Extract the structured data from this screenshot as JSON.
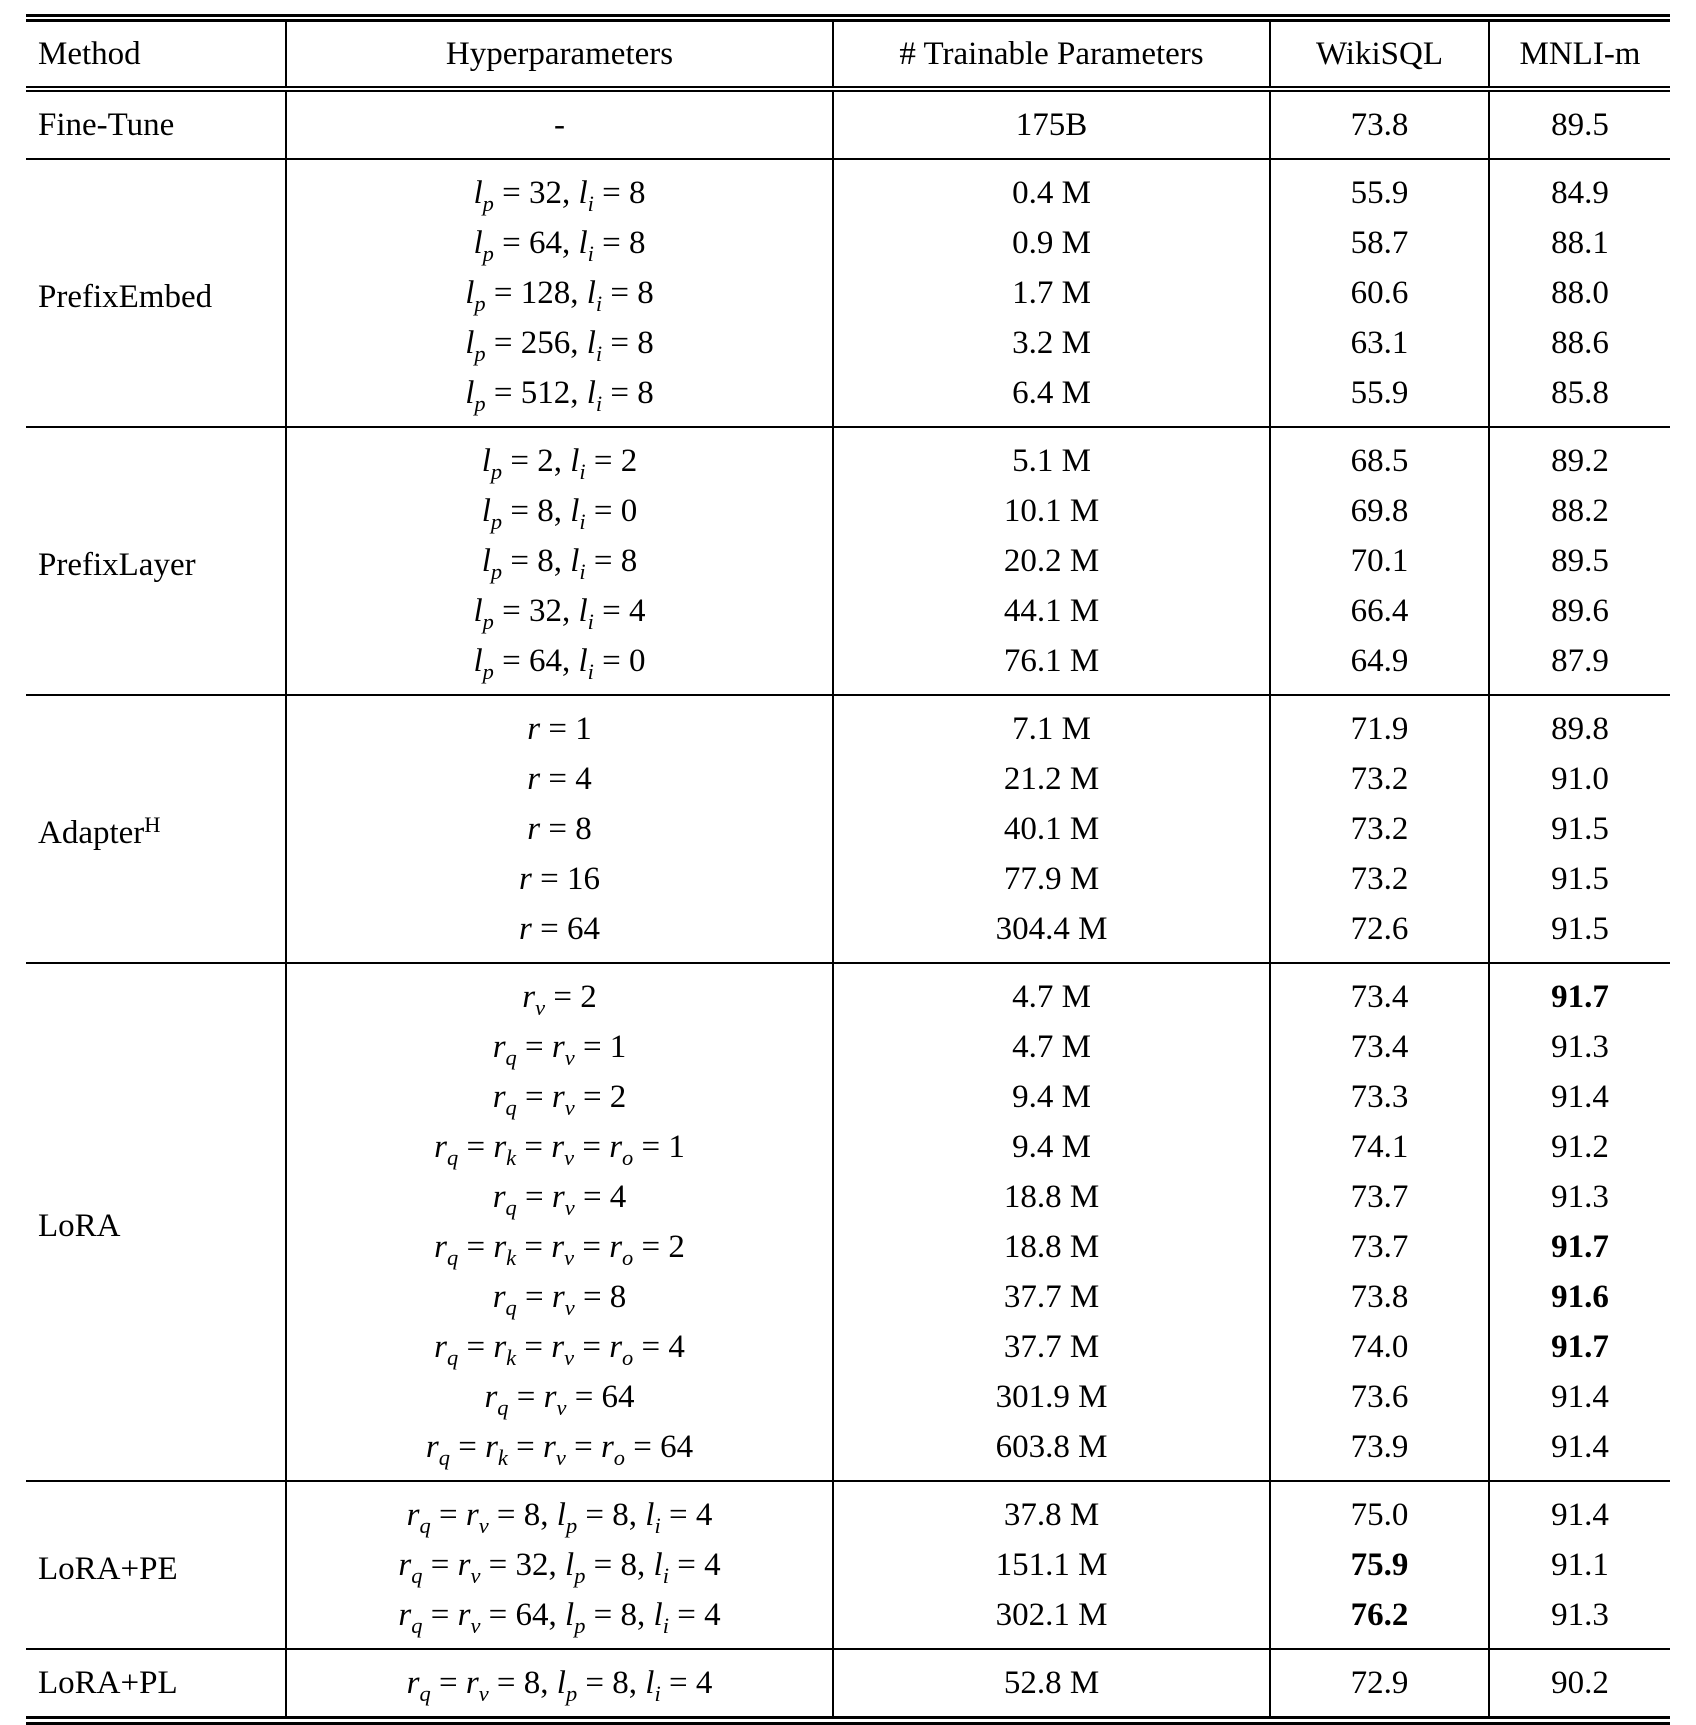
{
  "table": {
    "columns": [
      "Method",
      "Hyperparameters",
      "# Trainable Parameters",
      "WikiSQL",
      "MNLI-m"
    ],
    "groups": [
      {
        "method": "Fine-Tune",
        "rows": [
          {
            "hyperparameters": "-",
            "trainable": "175B",
            "wikisql": "73.8",
            "mnli": "89.5"
          }
        ]
      },
      {
        "method": "PrefixEmbed",
        "rows": [
          {
            "hyperparameters": "l_p = 32, l_i = 8",
            "trainable": "0.4 M",
            "wikisql": "55.9",
            "mnli": "84.9"
          },
          {
            "hyperparameters": "l_p = 64, l_i = 8",
            "trainable": "0.9 M",
            "wikisql": "58.7",
            "mnli": "88.1"
          },
          {
            "hyperparameters": "l_p = 128, l_i = 8",
            "trainable": "1.7 M",
            "wikisql": "60.6",
            "mnli": "88.0"
          },
          {
            "hyperparameters": "l_p = 256, l_i = 8",
            "trainable": "3.2 M",
            "wikisql": "63.1",
            "mnli": "88.6"
          },
          {
            "hyperparameters": "l_p = 512, l_i = 8",
            "trainable": "6.4 M",
            "wikisql": "55.9",
            "mnli": "85.8"
          }
        ]
      },
      {
        "method": "PrefixLayer",
        "rows": [
          {
            "hyperparameters": "l_p = 2, l_i = 2",
            "trainable": "5.1 M",
            "wikisql": "68.5",
            "mnli": "89.2"
          },
          {
            "hyperparameters": "l_p = 8, l_i = 0",
            "trainable": "10.1 M",
            "wikisql": "69.8",
            "mnli": "88.2"
          },
          {
            "hyperparameters": "l_p = 8, l_i = 8",
            "trainable": "20.2 M",
            "wikisql": "70.1",
            "mnli": "89.5"
          },
          {
            "hyperparameters": "l_p = 32, l_i = 4",
            "trainable": "44.1 M",
            "wikisql": "66.4",
            "mnli": "89.6"
          },
          {
            "hyperparameters": "l_p = 64, l_i = 0",
            "trainable": "76.1 M",
            "wikisql": "64.9",
            "mnli": "87.9"
          }
        ]
      },
      {
        "method": "Adapter^H",
        "rows": [
          {
            "hyperparameters": "r = 1",
            "trainable": "7.1 M",
            "wikisql": "71.9",
            "mnli": "89.8"
          },
          {
            "hyperparameters": "r = 4",
            "trainable": "21.2 M",
            "wikisql": "73.2",
            "mnli": "91.0"
          },
          {
            "hyperparameters": "r = 8",
            "trainable": "40.1 M",
            "wikisql": "73.2",
            "mnli": "91.5"
          },
          {
            "hyperparameters": "r = 16",
            "trainable": "77.9 M",
            "wikisql": "73.2",
            "mnli": "91.5"
          },
          {
            "hyperparameters": "r = 64",
            "trainable": "304.4 M",
            "wikisql": "72.6",
            "mnli": "91.5"
          }
        ]
      },
      {
        "method": "LoRA",
        "rows": [
          {
            "hyperparameters": "r_v = 2",
            "trainable": "4.7 M",
            "wikisql": "73.4",
            "mnli": "91.7",
            "bold": [
              "mnli"
            ]
          },
          {
            "hyperparameters": "r_q = r_v = 1",
            "trainable": "4.7 M",
            "wikisql": "73.4",
            "mnli": "91.3"
          },
          {
            "hyperparameters": "r_q = r_v = 2",
            "trainable": "9.4 M",
            "wikisql": "73.3",
            "mnli": "91.4"
          },
          {
            "hyperparameters": "r_q = r_k = r_v = r_o = 1",
            "trainable": "9.4 M",
            "wikisql": "74.1",
            "mnli": "91.2"
          },
          {
            "hyperparameters": "r_q = r_v = 4",
            "trainable": "18.8 M",
            "wikisql": "73.7",
            "mnli": "91.3"
          },
          {
            "hyperparameters": "r_q = r_k = r_v = r_o = 2",
            "trainable": "18.8 M",
            "wikisql": "73.7",
            "mnli": "91.7",
            "bold": [
              "mnli"
            ]
          },
          {
            "hyperparameters": "r_q = r_v = 8",
            "trainable": "37.7 M",
            "wikisql": "73.8",
            "mnli": "91.6",
            "bold": [
              "mnli"
            ]
          },
          {
            "hyperparameters": "r_q = r_k = r_v = r_o = 4",
            "trainable": "37.7 M",
            "wikisql": "74.0",
            "mnli": "91.7",
            "bold": [
              "mnli"
            ]
          },
          {
            "hyperparameters": "r_q = r_v = 64",
            "trainable": "301.9 M",
            "wikisql": "73.6",
            "mnli": "91.4"
          },
          {
            "hyperparameters": "r_q = r_k = r_v = r_o = 64",
            "trainable": "603.8 M",
            "wikisql": "73.9",
            "mnli": "91.4"
          }
        ]
      },
      {
        "method": "LoRA+PE",
        "rows": [
          {
            "hyperparameters": "r_q = r_v = 8, l_p = 8, l_i = 4",
            "trainable": "37.8 M",
            "wikisql": "75.0",
            "mnli": "91.4"
          },
          {
            "hyperparameters": "r_q = r_v = 32, l_p = 8, l_i = 4",
            "trainable": "151.1 M",
            "wikisql": "75.9",
            "mnli": "91.1",
            "bold": [
              "wikisql"
            ]
          },
          {
            "hyperparameters": "r_q = r_v = 64, l_p = 8, l_i = 4",
            "trainable": "302.1 M",
            "wikisql": "76.2",
            "mnli": "91.3",
            "bold": [
              "wikisql"
            ]
          }
        ]
      },
      {
        "method": "LoRA+PL",
        "rows": [
          {
            "hyperparameters": "r_q = r_v = 8, l_p = 8, l_i = 4",
            "trainable": "52.8 M",
            "wikisql": "72.9",
            "mnli": "90.2"
          }
        ]
      }
    ]
  }
}
